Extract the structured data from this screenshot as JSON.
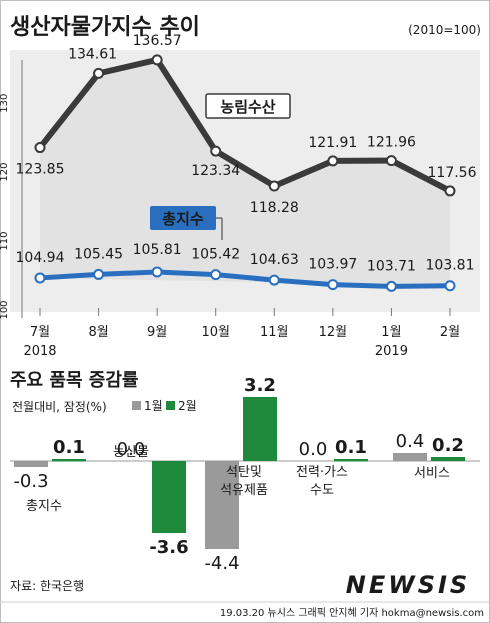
{
  "header": {
    "title": "생산자물가지수 추이",
    "base_note": "(2010=100)"
  },
  "chart_data": [
    {
      "type": "line",
      "categories": [
        "7월",
        "8월",
        "9월",
        "10월",
        "11월",
        "12월",
        "1월",
        "2월"
      ],
      "year_labels": [
        {
          "label": "2018",
          "category": "7월"
        },
        {
          "label": "2019",
          "category": "1월"
        }
      ],
      "ylim": [
        100,
        138
      ],
      "yticks": [
        100,
        110,
        120,
        130
      ],
      "series": [
        {
          "name": "농림수산",
          "color": "#3a3a3a",
          "values": [
            123.85,
            134.61,
            136.57,
            123.34,
            118.28,
            121.91,
            121.96,
            117.56
          ],
          "labels": [
            "123.85",
            "134.61",
            "136.57",
            "123.34",
            "118.28",
            "121.91",
            "121.96",
            "117.56"
          ]
        },
        {
          "name": "총지수",
          "color": "#2a6fbf",
          "values": [
            104.94,
            105.45,
            105.81,
            105.42,
            104.63,
            103.97,
            103.71,
            103.81
          ],
          "labels": [
            "104.94",
            "105.45",
            "105.81",
            "105.42",
            "104.63",
            "103.97",
            "103.71",
            "103.81"
          ]
        }
      ]
    },
    {
      "type": "bar",
      "title": "주요 품목 증감률",
      "subtitle": "전월대비, 잠정(%)",
      "categories": [
        "총지수",
        "농산물",
        "석탄및\n석유제품",
        "전력·가스\n수도",
        "서비스"
      ],
      "series": [
        {
          "name": "1월",
          "color": "#9a9a9a",
          "values": [
            -0.3,
            0.0,
            -4.4,
            0.0,
            0.4
          ],
          "labels": [
            "-0.3",
            "0.0",
            "-4.4",
            "0.0",
            "0.4"
          ]
        },
        {
          "name": "2월",
          "color": "#1f8a3c",
          "values": [
            0.1,
            -3.6,
            3.2,
            0.1,
            0.2
          ],
          "labels": [
            "0.1",
            "-3.6",
            "3.2",
            "0.1",
            "0.2"
          ]
        }
      ]
    }
  ],
  "footer": {
    "source": "자료: 한국은행",
    "credit": "19.03.20  뉴시스 그래픽 안지혜 기자  hokma@newsis.com",
    "watermark": "NEWSIS"
  }
}
